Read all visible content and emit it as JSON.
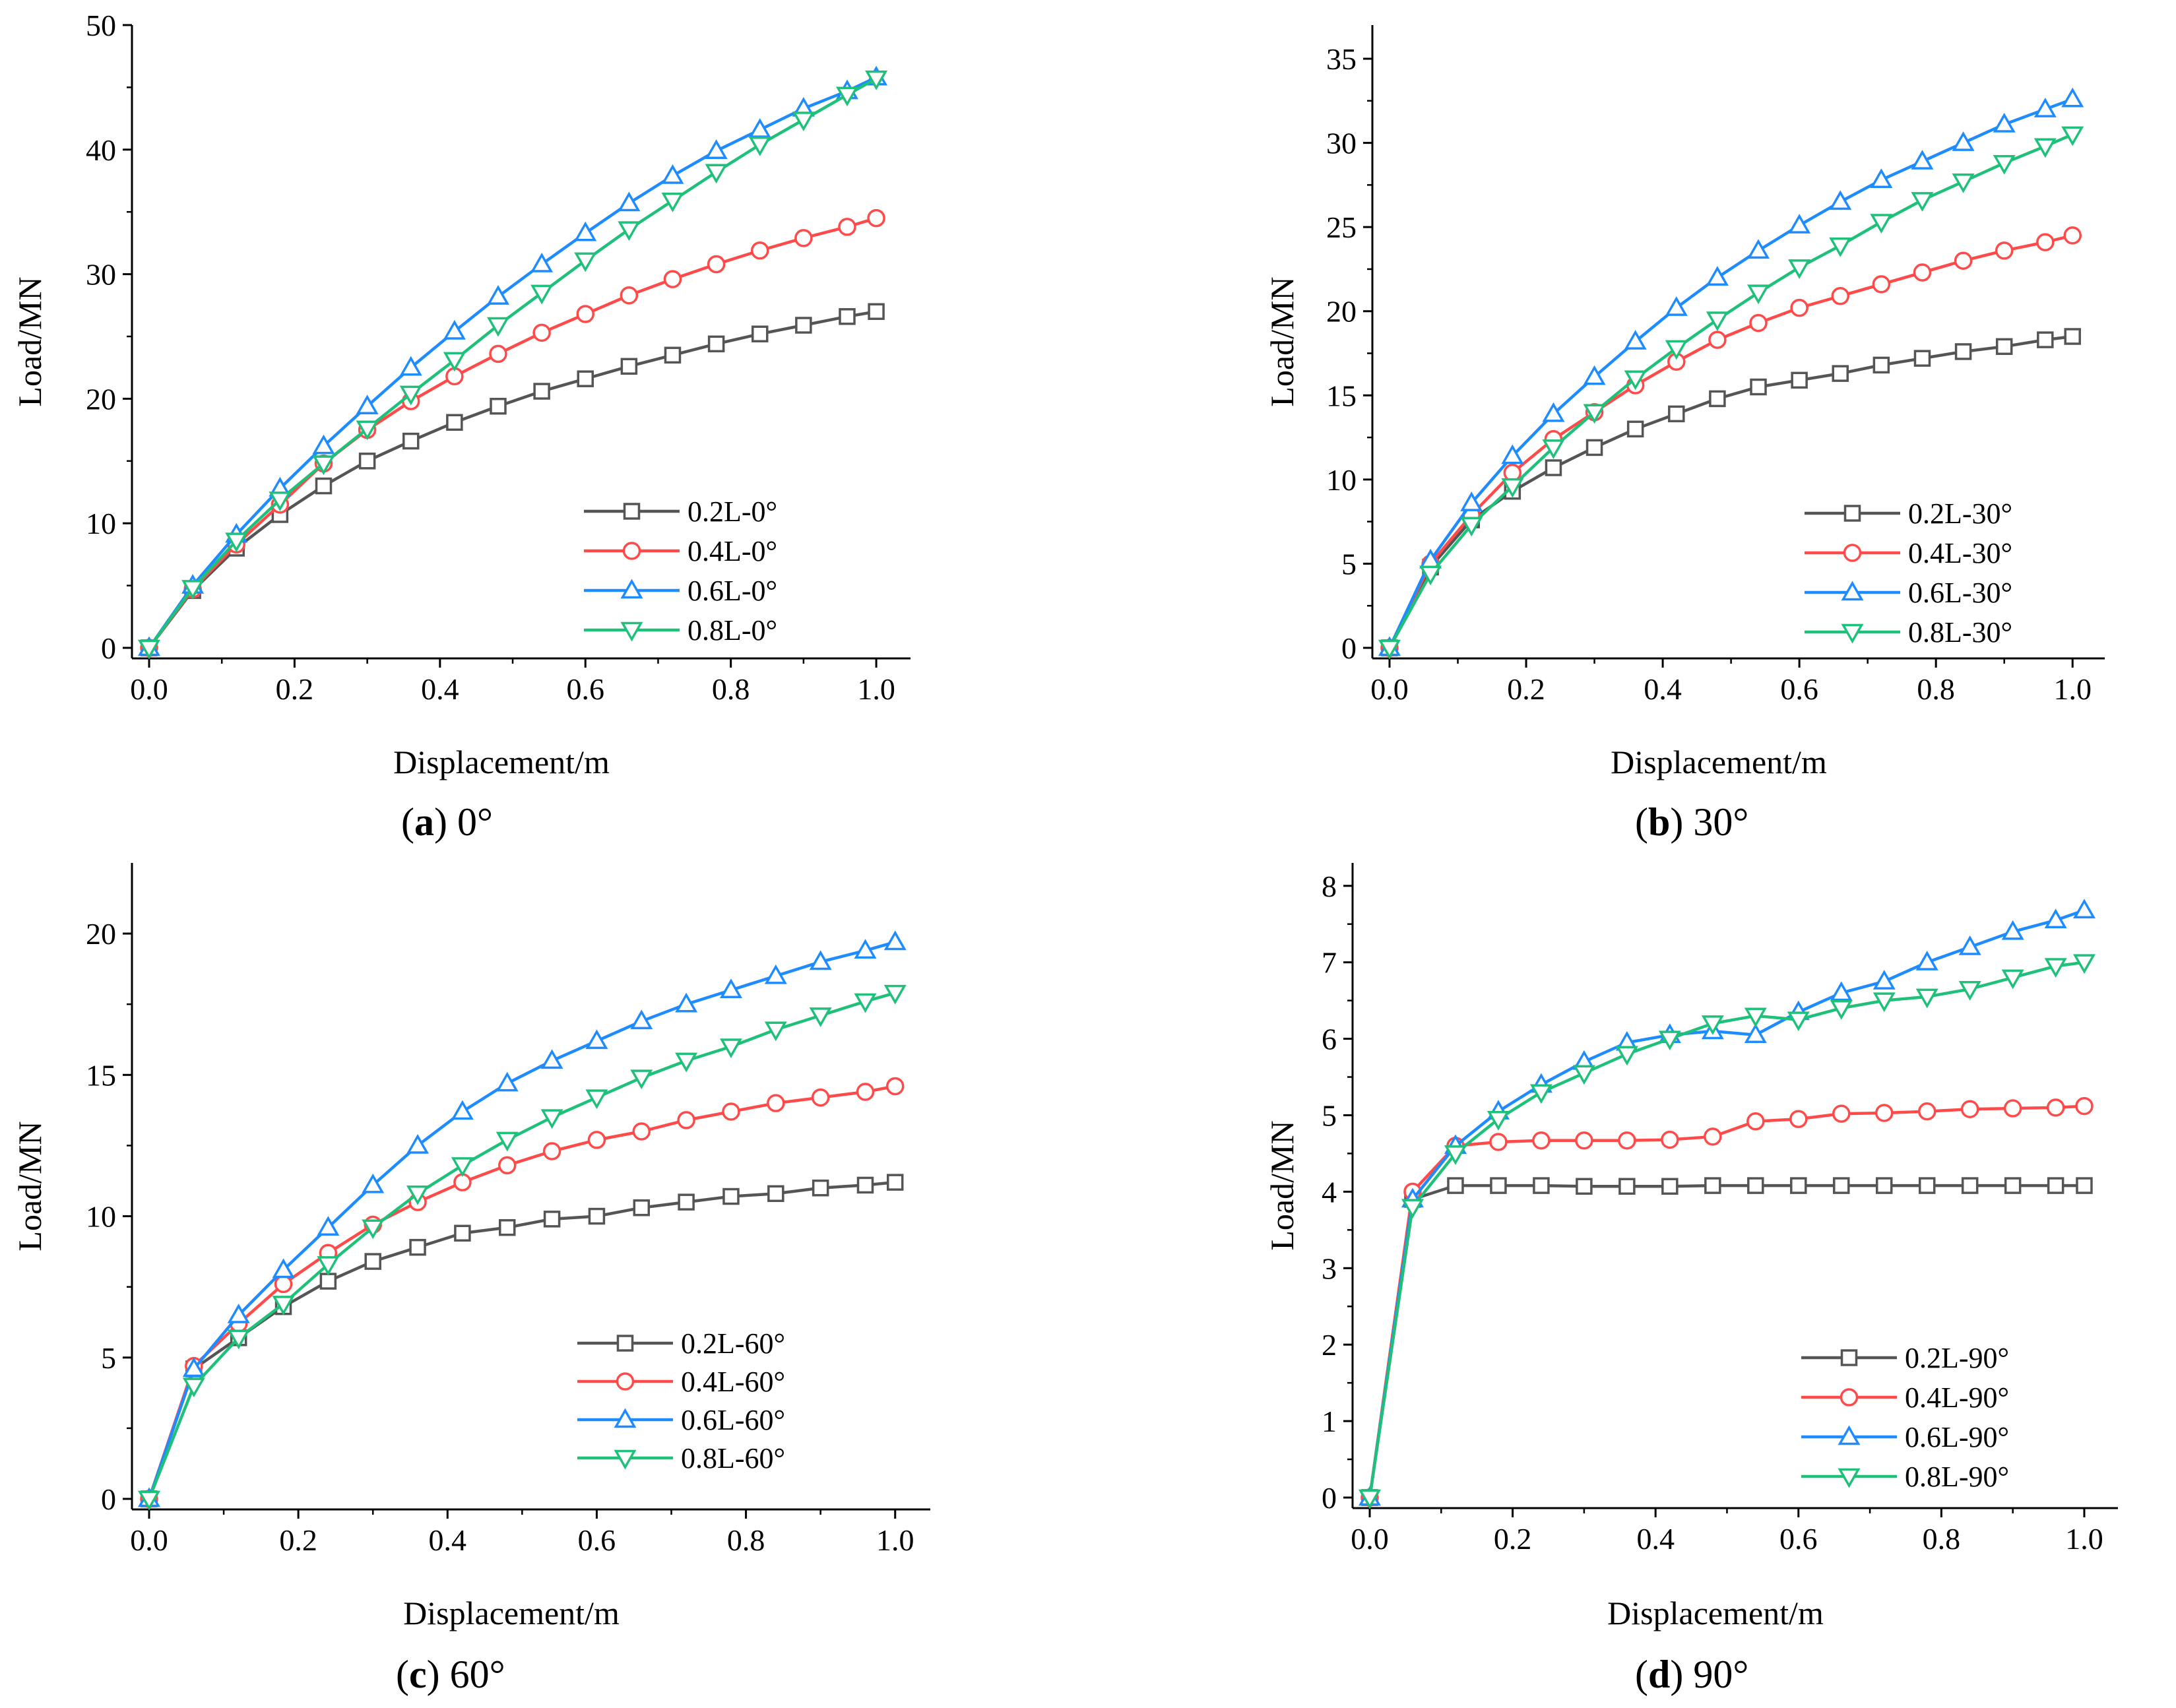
{
  "chart_data": [
    {
      "type": "line",
      "panel_letter": "a",
      "caption": "0°",
      "xlabel": "Displacement/m",
      "ylabel": "Load/MN",
      "xlim": [
        0,
        1.0
      ],
      "ylim": [
        0,
        50
      ],
      "xticks": [
        0.0,
        0.2,
        0.4,
        0.6,
        0.8,
        1.0
      ],
      "yticks": [
        0,
        10,
        20,
        30,
        40,
        50
      ],
      "xtick_labels": [
        "0.0",
        "0.2",
        "0.4",
        "0.6",
        "0.8",
        "1.0"
      ],
      "ytick_labels": [
        "0",
        "10",
        "20",
        "30",
        "40",
        "50"
      ],
      "legend_position": "lower-right",
      "grid": false,
      "x": [
        0,
        0.06,
        0.12,
        0.18,
        0.24,
        0.3,
        0.36,
        0.42,
        0.48,
        0.54,
        0.6,
        0.66,
        0.72,
        0.78,
        0.84,
        0.9,
        0.96,
        1.0
      ],
      "series": [
        {
          "name": "0.2L-0°",
          "color": "#555555",
          "marker": "square",
          "values": [
            0,
            4.6,
            8.0,
            10.7,
            13.0,
            15.0,
            16.6,
            18.1,
            19.4,
            20.6,
            21.6,
            22.6,
            23.5,
            24.4,
            25.2,
            25.9,
            26.6,
            27.0
          ]
        },
        {
          "name": "0.4L-0°",
          "color": "#ff4a4a",
          "marker": "circle",
          "values": [
            0,
            4.7,
            8.3,
            11.5,
            14.8,
            17.5,
            19.8,
            21.8,
            23.6,
            25.3,
            26.8,
            28.3,
            29.6,
            30.8,
            31.9,
            32.9,
            33.8,
            34.5
          ]
        },
        {
          "name": "0.6L-0°",
          "color": "#1e8cff",
          "marker": "triangle-up",
          "values": [
            0,
            5.0,
            9.1,
            12.8,
            16.2,
            19.4,
            22.5,
            25.4,
            28.2,
            30.8,
            33.3,
            35.7,
            37.9,
            39.9,
            41.6,
            43.3,
            44.7,
            45.8
          ]
        },
        {
          "name": "0.8L-0°",
          "color": "#1fc07a",
          "marker": "triangle-down",
          "values": [
            0,
            4.8,
            8.6,
            11.9,
            14.8,
            17.6,
            20.4,
            23.1,
            25.9,
            28.5,
            31.1,
            33.6,
            35.9,
            38.2,
            40.4,
            42.4,
            44.4,
            45.7
          ]
        }
      ]
    },
    {
      "type": "line",
      "panel_letter": "b",
      "caption": "30°",
      "xlabel": "Displacement/m",
      "ylabel": "Load/MN",
      "xlim": [
        0,
        1.0
      ],
      "ylim": [
        0,
        37
      ],
      "xticks": [
        0.0,
        0.2,
        0.4,
        0.6,
        0.8,
        1.0
      ],
      "yticks": [
        0,
        5,
        10,
        15,
        20,
        25,
        30,
        35
      ],
      "xtick_labels": [
        "0.0",
        "0.2",
        "0.4",
        "0.6",
        "0.8",
        "1.0"
      ],
      "ytick_labels": [
        "0",
        "5",
        "10",
        "15",
        "20",
        "25",
        "30",
        "35"
      ],
      "legend_position": "lower-right",
      "grid": false,
      "x": [
        0,
        0.06,
        0.12,
        0.18,
        0.24,
        0.3,
        0.36,
        0.42,
        0.48,
        0.54,
        0.6,
        0.66,
        0.72,
        0.78,
        0.84,
        0.9,
        0.96,
        1.0
      ],
      "series": [
        {
          "name": "0.2L-30°",
          "color": "#555555",
          "marker": "square",
          "values": [
            0,
            4.8,
            7.6,
            9.3,
            10.7,
            11.9,
            13.0,
            13.9,
            14.8,
            15.5,
            15.9,
            16.3,
            16.8,
            17.2,
            17.6,
            17.9,
            18.3,
            18.5
          ]
        },
        {
          "name": "0.4L-30°",
          "color": "#ff4a4a",
          "marker": "circle",
          "values": [
            0,
            5.0,
            7.9,
            10.4,
            12.4,
            14.0,
            15.6,
            17.0,
            18.3,
            19.3,
            20.2,
            20.9,
            21.6,
            22.3,
            23.0,
            23.6,
            24.1,
            24.5
          ]
        },
        {
          "name": "0.6L-30°",
          "color": "#1e8cff",
          "marker": "triangle-up",
          "values": [
            0,
            5.2,
            8.6,
            11.4,
            13.9,
            16.1,
            18.2,
            20.2,
            22.0,
            23.6,
            25.1,
            26.5,
            27.8,
            28.9,
            30.0,
            31.1,
            32.0,
            32.6
          ]
        },
        {
          "name": "0.8L-30°",
          "color": "#1fc07a",
          "marker": "triangle-down",
          "values": [
            0,
            4.4,
            7.3,
            9.6,
            11.9,
            14.0,
            16.0,
            17.8,
            19.5,
            21.1,
            22.6,
            23.9,
            25.3,
            26.6,
            27.7,
            28.8,
            29.8,
            30.5
          ]
        }
      ]
    },
    {
      "type": "line",
      "panel_letter": "c",
      "caption": "60°",
      "xlabel": "Displacement/m",
      "ylabel": "Load/MN",
      "xlim": [
        0,
        1.0
      ],
      "ylim": [
        0,
        22.5
      ],
      "xticks": [
        0.0,
        0.2,
        0.4,
        0.6,
        0.8,
        1.0
      ],
      "yticks": [
        0,
        5,
        10,
        15,
        20
      ],
      "xtick_labels": [
        "0.0",
        "0.2",
        "0.4",
        "0.6",
        "0.8",
        "1.0"
      ],
      "ytick_labels": [
        "0",
        "5",
        "10",
        "15",
        "20"
      ],
      "legend_position": "lower-right",
      "grid": false,
      "x": [
        0,
        0.06,
        0.12,
        0.18,
        0.24,
        0.3,
        0.36,
        0.42,
        0.48,
        0.54,
        0.6,
        0.66,
        0.72,
        0.78,
        0.84,
        0.9,
        0.96,
        1.0
      ],
      "series": [
        {
          "name": "0.2L-60°",
          "color": "#555555",
          "marker": "square",
          "values": [
            0,
            4.6,
            5.7,
            6.8,
            7.7,
            8.4,
            8.9,
            9.4,
            9.6,
            9.9,
            10.0,
            10.3,
            10.5,
            10.7,
            10.8,
            11.0,
            11.1,
            11.2
          ]
        },
        {
          "name": "0.4L-60°",
          "color": "#ff4a4a",
          "marker": "circle",
          "values": [
            0,
            4.7,
            6.2,
            7.6,
            8.7,
            9.7,
            10.5,
            11.2,
            11.8,
            12.3,
            12.7,
            13.0,
            13.4,
            13.7,
            14.0,
            14.2,
            14.4,
            14.6
          ]
        },
        {
          "name": "0.6L-60°",
          "color": "#1e8cff",
          "marker": "triangle-up",
          "values": [
            0,
            4.6,
            6.5,
            8.1,
            9.6,
            11.1,
            12.5,
            13.7,
            14.7,
            15.5,
            16.2,
            16.9,
            17.5,
            18.0,
            18.5,
            19.0,
            19.4,
            19.7
          ]
        },
        {
          "name": "0.8L-60°",
          "color": "#1fc07a",
          "marker": "triangle-down",
          "values": [
            0,
            4.0,
            5.7,
            6.9,
            8.3,
            9.6,
            10.8,
            11.8,
            12.7,
            13.5,
            14.2,
            14.9,
            15.5,
            16.0,
            16.6,
            17.1,
            17.6,
            17.9
          ]
        }
      ]
    },
    {
      "type": "line",
      "panel_letter": "d",
      "caption": "90°",
      "xlabel": "Displacement/m",
      "ylabel": "Load/MN",
      "xlim": [
        0,
        1.0
      ],
      "ylim": [
        0,
        8.3
      ],
      "xticks": [
        0.0,
        0.2,
        0.4,
        0.6,
        0.8,
        1.0
      ],
      "yticks": [
        0,
        1,
        2,
        3,
        4,
        5,
        6,
        7,
        8
      ],
      "xtick_labels": [
        "0.0",
        "0.2",
        "0.4",
        "0.6",
        "0.8",
        "1.0"
      ],
      "ytick_labels": [
        "0",
        "1",
        "2",
        "3",
        "4",
        "5",
        "6",
        "7",
        "8"
      ],
      "legend_position": "lower-right",
      "grid": false,
      "x": [
        0,
        0.06,
        0.12,
        0.18,
        0.24,
        0.3,
        0.36,
        0.42,
        0.48,
        0.54,
        0.6,
        0.66,
        0.72,
        0.78,
        0.84,
        0.9,
        0.96,
        1.0
      ],
      "series": [
        {
          "name": "0.2L-90°",
          "color": "#555555",
          "marker": "square",
          "values": [
            0,
            3.9,
            4.08,
            4.08,
            4.08,
            4.07,
            4.07,
            4.07,
            4.08,
            4.08,
            4.08,
            4.08,
            4.08,
            4.08,
            4.08,
            4.08,
            4.08,
            4.08
          ]
        },
        {
          "name": "0.4L-90°",
          "color": "#ff4a4a",
          "marker": "circle",
          "values": [
            0,
            4.0,
            4.6,
            4.65,
            4.67,
            4.67,
            4.67,
            4.68,
            4.72,
            4.92,
            4.95,
            5.02,
            5.03,
            5.05,
            5.08,
            5.09,
            5.1,
            5.12
          ]
        },
        {
          "name": "0.6L-90°",
          "color": "#1e8cff",
          "marker": "triangle-up",
          "values": [
            0,
            3.9,
            4.6,
            5.05,
            5.4,
            5.7,
            5.95,
            6.05,
            6.1,
            6.05,
            6.35,
            6.6,
            6.75,
            7.0,
            7.2,
            7.4,
            7.55,
            7.68
          ]
        },
        {
          "name": "0.8L-90°",
          "color": "#1fc07a",
          "marker": "triangle-down",
          "values": [
            0,
            3.8,
            4.5,
            4.95,
            5.3,
            5.55,
            5.8,
            6.0,
            6.2,
            6.3,
            6.25,
            6.4,
            6.5,
            6.55,
            6.65,
            6.8,
            6.95,
            7.0
          ]
        }
      ]
    }
  ]
}
